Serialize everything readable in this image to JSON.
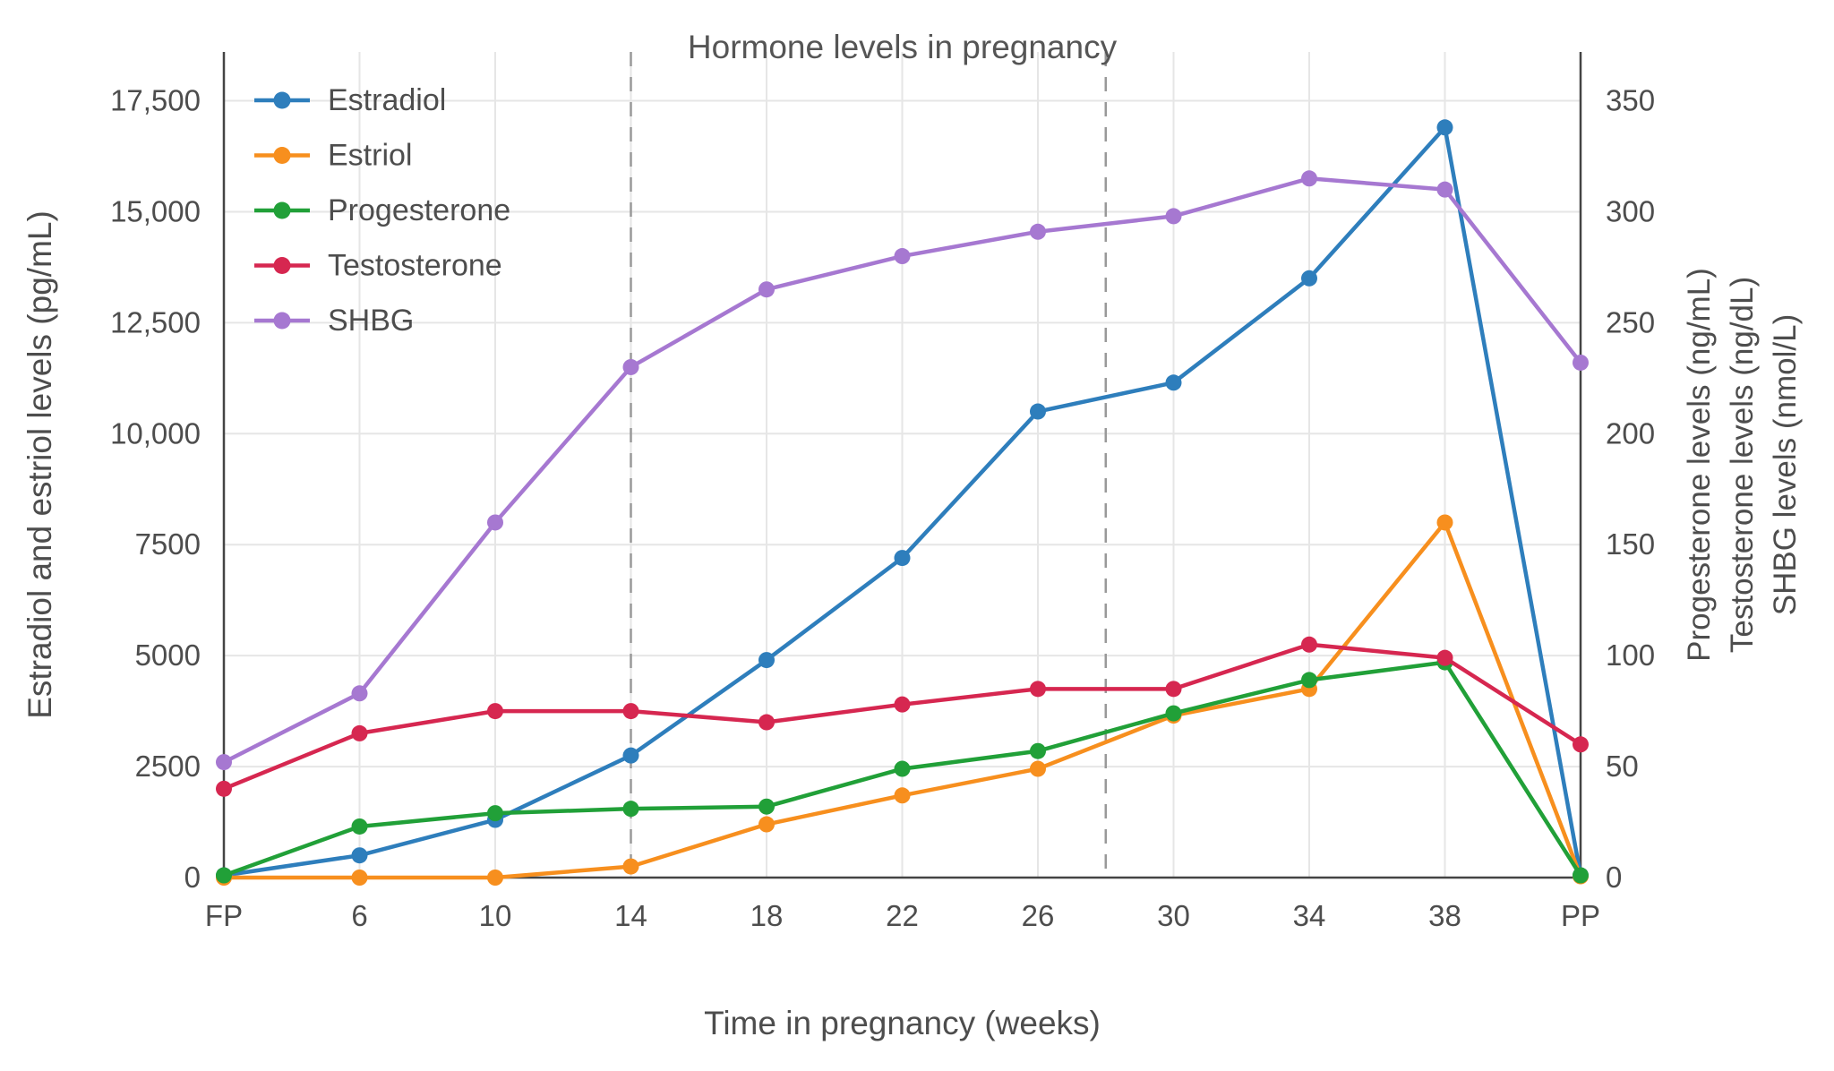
{
  "title": "Hormone levels in pregnancy",
  "chart_data": {
    "type": "line",
    "title": "Hormone levels in pregnancy",
    "xlabel": "Time in pregnancy (weeks)",
    "ylabel_left": "Estradiol and estriol levels (pg/mL)",
    "ylabel_right": [
      "Progesterone levels (ng/mL)",
      "Testosterone levels (ng/dL)",
      "SHBG levels (nmol/L)"
    ],
    "categories": [
      "FP",
      "6",
      "10",
      "14",
      "18",
      "22",
      "26",
      "30",
      "34",
      "38",
      "PP"
    ],
    "y_left_axis": {
      "ticks": [
        0,
        2500,
        5000,
        7500,
        10000,
        12500,
        15000,
        17500
      ],
      "tick_labels": [
        "0",
        "2500",
        "5000",
        "7500",
        "10,000",
        "12,500",
        "15,000",
        "17,500"
      ],
      "range": [
        0,
        18600
      ],
      "units": "pg/mL"
    },
    "y_right_axis": {
      "ticks": [
        0,
        50,
        100,
        150,
        200,
        250,
        300,
        350
      ],
      "tick_labels": [
        "0",
        "50",
        "100",
        "150",
        "200",
        "250",
        "300",
        "350"
      ],
      "range": [
        0,
        372
      ],
      "units": "ng/mL | ng/dL | nmol/L"
    },
    "series": [
      {
        "name": "Estradiol",
        "axis": "left",
        "color": "#2e7ebc",
        "values": [
          50,
          500,
          1300,
          2750,
          4900,
          7200,
          10500,
          11150,
          13500,
          16900,
          50
        ]
      },
      {
        "name": "Estriol",
        "axis": "left",
        "color": "#f78f1e",
        "values": [
          0,
          0,
          0,
          250,
          1200,
          1850,
          2450,
          3650,
          4250,
          8000,
          30
        ]
      },
      {
        "name": "Progesterone",
        "axis": "right",
        "color": "#21a038",
        "values": [
          1,
          23,
          29,
          31,
          32,
          49,
          57,
          74,
          89,
          97,
          1
        ]
      },
      {
        "name": "Testosterone",
        "axis": "right",
        "color": "#d62750",
        "values": [
          40,
          65,
          75,
          75,
          70,
          78,
          85,
          85,
          105,
          99,
          60
        ]
      },
      {
        "name": "SHBG",
        "axis": "right",
        "color": "#a678d1",
        "values": [
          52,
          83,
          160,
          230,
          265,
          280,
          291,
          298,
          315,
          310,
          232
        ]
      }
    ],
    "reference_lines": {
      "solid_at_categories": [
        "FP",
        "PP"
      ],
      "dashed_at_category_indices": [
        3,
        6.5
      ]
    },
    "legend": {
      "position": "top-left",
      "entries": [
        "Estradiol",
        "Estriol",
        "Progesterone",
        "Testosterone",
        "SHBG"
      ]
    },
    "grid": true
  },
  "style": {
    "background": "#ffffff",
    "grid_color": "#e6e6e6",
    "axis_color": "#444444",
    "dashed_line_color": "#999999",
    "text_color": "#4d4d4d"
  }
}
